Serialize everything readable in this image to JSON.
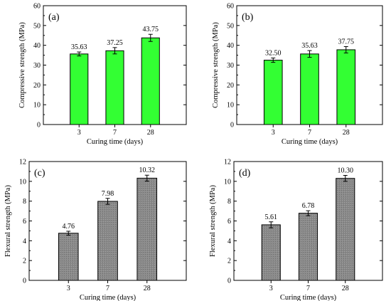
{
  "chart_data": [
    {
      "type": "bar",
      "panel_label": "(a)",
      "categories": [
        "3",
        "7",
        "28"
      ],
      "values": [
        35.63,
        37.25,
        43.75
      ],
      "errors": [
        1.0,
        1.6,
        1.8
      ],
      "data_labels": [
        "35.63",
        "37.25",
        "43.75"
      ],
      "xlabel": "Curing time (days)",
      "ylabel": "Compressive strength (MPa)",
      "ylim": [
        0,
        60
      ],
      "yticks": [
        "0",
        "10",
        "20",
        "30",
        "40",
        "50",
        "60"
      ],
      "bar_color": "#33ff33"
    },
    {
      "type": "bar",
      "panel_label": "(b)",
      "categories": [
        "3",
        "7",
        "28"
      ],
      "values": [
        32.5,
        35.63,
        37.75
      ],
      "errors": [
        1.1,
        1.7,
        1.6
      ],
      "data_labels": [
        "32.50",
        "35.63",
        "37.75"
      ],
      "xlabel": "Curing time (days)",
      "ylabel": "Compressive strength (MPa)",
      "ylim": [
        0,
        60
      ],
      "yticks": [
        "0",
        "10",
        "20",
        "30",
        "40",
        "50",
        "60"
      ],
      "bar_color": "#33ff33"
    },
    {
      "type": "bar",
      "panel_label": "(c)",
      "categories": [
        "3",
        "7",
        "28"
      ],
      "values": [
        4.76,
        7.98,
        10.32
      ],
      "errors": [
        0.2,
        0.3,
        0.3
      ],
      "data_labels": [
        "4.76",
        "7.98",
        "10.32"
      ],
      "xlabel": "Curing time (days)",
      "ylabel": "Flexural strength (MPa)",
      "ylim": [
        0,
        12
      ],
      "yticks": [
        "0",
        "2",
        "4",
        "6",
        "8",
        "10",
        "12"
      ],
      "bar_color": "#888888"
    },
    {
      "type": "bar",
      "panel_label": "(d)",
      "categories": [
        "3",
        "7",
        "28"
      ],
      "values": [
        5.61,
        6.78,
        10.3
      ],
      "errors": [
        0.3,
        0.25,
        0.3
      ],
      "data_labels": [
        "5.61",
        "6.78",
        "10.30"
      ],
      "xlabel": "Curing time (days)",
      "ylabel": "Flexural strength (MPa)",
      "ylim": [
        0,
        12
      ],
      "yticks": [
        "0",
        "2",
        "4",
        "6",
        "8",
        "10",
        "12"
      ],
      "bar_color": "#888888"
    }
  ]
}
